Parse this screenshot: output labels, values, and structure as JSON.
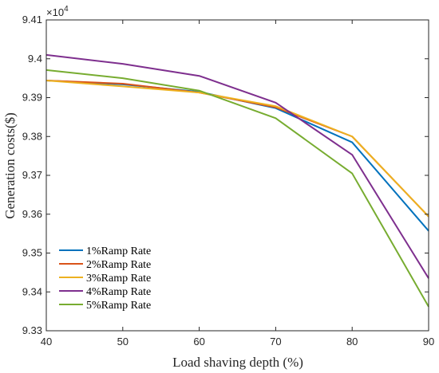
{
  "chart_data": {
    "type": "line",
    "title": "",
    "xlabel": "Load shaving depth (%)",
    "ylabel": "Generation costs($)",
    "y_multiplier_label": "×10",
    "y_multiplier_exp": "4",
    "x": [
      40,
      50,
      60,
      70,
      80,
      90
    ],
    "xlim": [
      40,
      90
    ],
    "ylim": [
      9.33,
      9.41
    ],
    "xticks": [
      40,
      50,
      60,
      70,
      80,
      90
    ],
    "yticks": [
      9.33,
      9.34,
      9.35,
      9.36,
      9.37,
      9.38,
      9.39,
      9.4,
      9.41
    ],
    "xtick_labels": [
      "40",
      "50",
      "60",
      "70",
      "80",
      "90"
    ],
    "ytick_labels": [
      "9.33",
      "9.34",
      "9.35",
      "9.36",
      "9.37",
      "9.38",
      "9.39",
      "9.4",
      "9.41"
    ],
    "grid": false,
    "legend_position": "bottom-left",
    "series": [
      {
        "name": "1%Ramp Rate",
        "color": "#0072BD",
        "values": [
          9.3944,
          9.3934,
          9.3915,
          9.3873,
          9.3785,
          9.3557
        ]
      },
      {
        "name": "2%Ramp Rate",
        "color": "#D95319",
        "values": [
          9.3944,
          9.3936,
          9.3913,
          9.3875,
          9.38,
          9.3594
        ]
      },
      {
        "name": "3%Ramp Rate",
        "color": "#EDB120",
        "values": [
          9.3944,
          9.3929,
          9.3913,
          9.3878,
          9.38,
          9.3594
        ]
      },
      {
        "name": "4%Ramp Rate",
        "color": "#7E2F8E",
        "values": [
          9.401,
          9.3987,
          9.3956,
          9.3887,
          9.3753,
          9.3435
        ]
      },
      {
        "name": "5%Ramp Rate",
        "color": "#77AC30",
        "values": [
          9.3971,
          9.395,
          9.3918,
          9.3847,
          9.3705,
          9.3362
        ]
      }
    ]
  }
}
